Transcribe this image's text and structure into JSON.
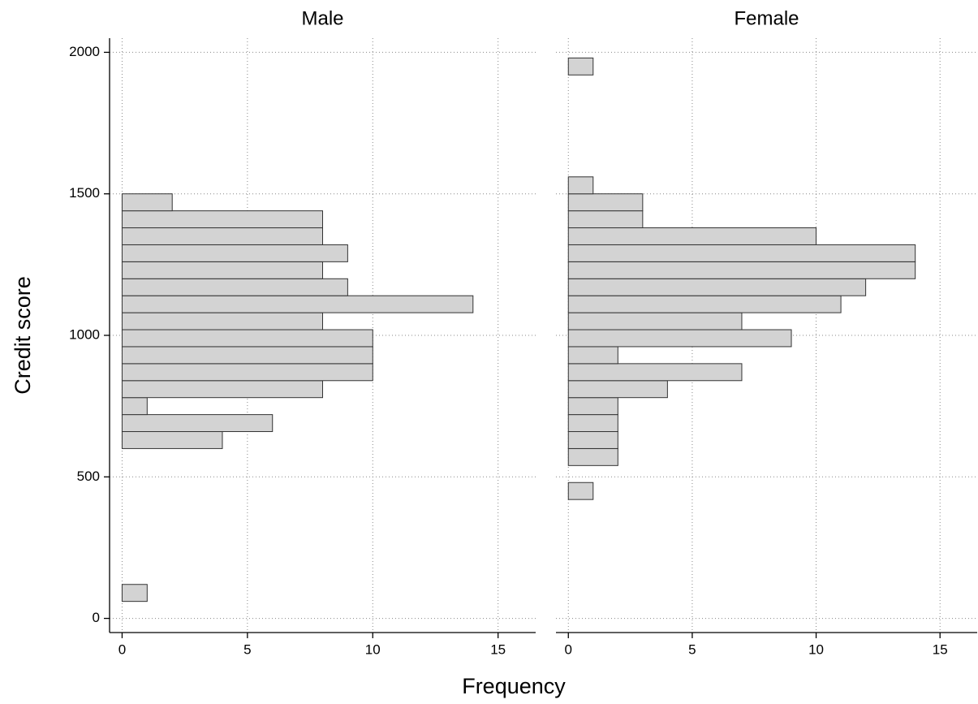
{
  "chart_data": {
    "type": "histogram",
    "orientation": "horizontal",
    "ylabel": "Credit score",
    "xlabel": "Frequency",
    "color": "#d3d3d3",
    "edgecolor": "#333333",
    "grid": true,
    "xlim": [
      -0.5,
      16.5
    ],
    "xticks": [
      0,
      5,
      10,
      15
    ],
    "ylim": [
      -50,
      2050
    ],
    "yticks": [
      0,
      500,
      1000,
      1500,
      2000
    ],
    "panels": [
      {
        "title": "Male",
        "bins": [
          60,
          120,
          180,
          240,
          300,
          360,
          420,
          480,
          540,
          600,
          660,
          720,
          780,
          840,
          900,
          960,
          1020,
          1080,
          1140,
          1200,
          1260,
          1320,
          1380,
          1440,
          1500
        ],
        "values": [
          1,
          0,
          0,
          0,
          0,
          0,
          0,
          0,
          0,
          4,
          6,
          1,
          8,
          10,
          10,
          10,
          8,
          14,
          9,
          8,
          9,
          8,
          8,
          2
        ]
      },
      {
        "title": "Female",
        "bins": [
          420,
          480,
          540,
          600,
          660,
          720,
          780,
          840,
          900,
          960,
          1020,
          1080,
          1140,
          1200,
          1260,
          1320,
          1380,
          1440,
          1500,
          1560,
          1620,
          1680,
          1740,
          1800,
          1860,
          1920,
          1980
        ],
        "values": [
          1,
          0,
          2,
          2,
          2,
          2,
          4,
          7,
          2,
          9,
          7,
          11,
          12,
          14,
          14,
          10,
          3,
          3,
          1,
          0,
          0,
          0,
          0,
          0,
          0,
          1
        ]
      }
    ]
  }
}
